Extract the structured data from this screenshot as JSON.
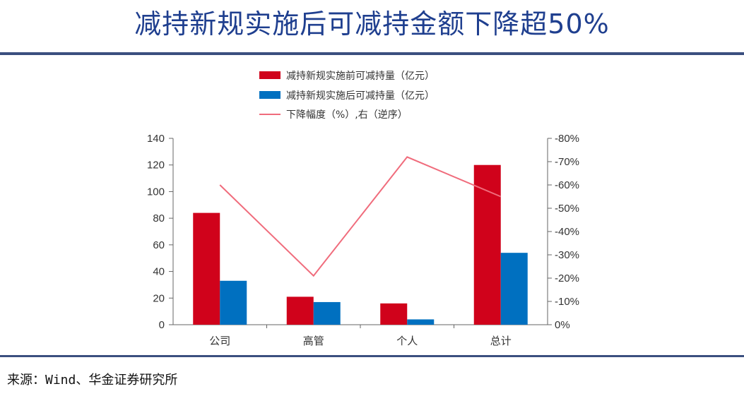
{
  "title": "减持新规实施后可减持金额下降超50%",
  "source": "来源：Wind、华金证券研究所",
  "chart_data": {
    "type": "bar",
    "categories": [
      "公司",
      "高管",
      "个人",
      "总计"
    ],
    "series": [
      {
        "name": "减持新规实施前可减持量（亿元）",
        "type": "bar",
        "axis": "left",
        "color": "#d0021b",
        "values": [
          84,
          21,
          16,
          120
        ]
      },
      {
        "name": "减持新规实施后可减持量（亿元）",
        "type": "bar",
        "axis": "left",
        "color": "#0070c0",
        "values": [
          33,
          17,
          4,
          54
        ]
      },
      {
        "name": "下降幅度（%）,右（逆序）",
        "type": "line",
        "axis": "right",
        "color": "#f06c7c",
        "values": [
          -60,
          -21,
          -72,
          -55
        ]
      }
    ],
    "left_axis": {
      "min": 0,
      "max": 140,
      "ticks": [
        0,
        20,
        40,
        60,
        80,
        100,
        120,
        140
      ]
    },
    "right_axis": {
      "reversed": true,
      "min": 0,
      "max": -80,
      "ticks": [
        0,
        -10,
        -20,
        -30,
        -40,
        -50,
        -60,
        -70,
        -80
      ],
      "tick_labels": [
        "0%",
        "-10%",
        "-20%",
        "-30%",
        "-40%",
        "-50%",
        "-60%",
        "-70%",
        "-80%"
      ]
    },
    "legend_position": "top-center",
    "grid": false
  }
}
